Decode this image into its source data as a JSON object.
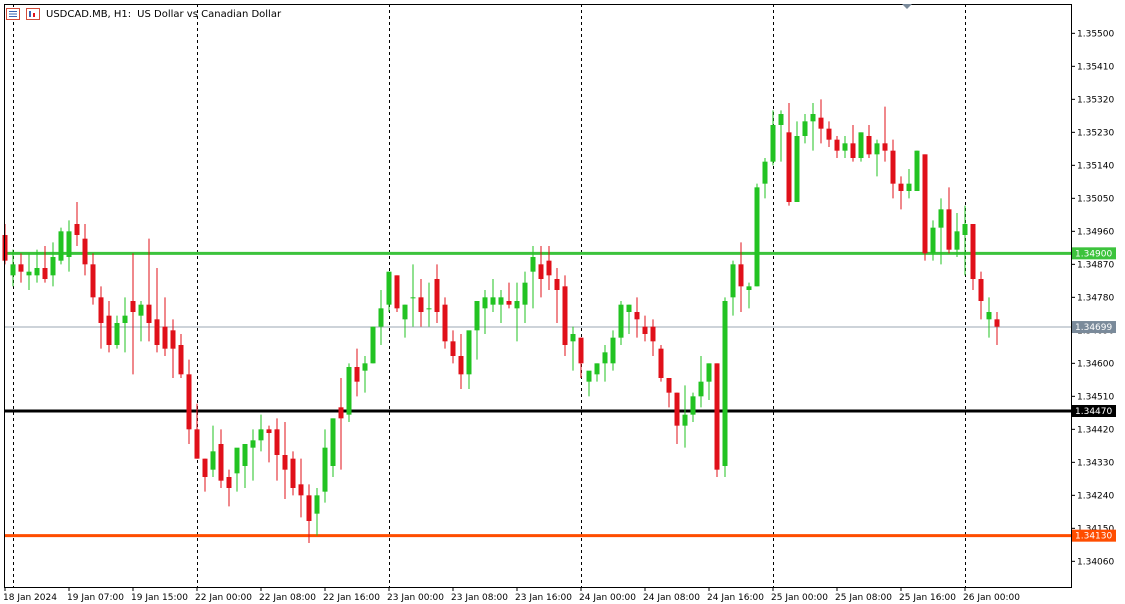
{
  "header": {
    "symbol": "USDCAD.MB, H1:",
    "description": "US Dollar vs Canadian Dollar"
  },
  "colors": {
    "bull": "#22c322",
    "bear": "#e0101a",
    "grid": "#000000",
    "level_green": "#3cc33c",
    "level_black": "#000000",
    "level_orange": "#ff4d00",
    "current_price_line": "#7a8a9a",
    "current_price_bg": "#7a8a9a"
  },
  "chart_data": {
    "type": "candlestick",
    "title": "USDCAD.MB, H1:  US Dollar vs Canadian Dollar",
    "timeframe": "H1",
    "ylim": [
      1.3399,
      1.3558
    ],
    "y_ticks": [
      "1.35500",
      "1.35410",
      "1.35320",
      "1.35230",
      "1.35140",
      "1.35050",
      "1.34960",
      "1.34870",
      "1.34780",
      "1.34690",
      "1.34600",
      "1.34510",
      "1.34420",
      "1.34330",
      "1.34240",
      "1.34150",
      "1.34060"
    ],
    "x_labels": [
      "18 Jan 2024",
      "19 Jan 07:00",
      "19 Jan 15:00",
      "22 Jan 00:00",
      "22 Jan 08:00",
      "22 Jan 16:00",
      "23 Jan 00:00",
      "23 Jan 08:00",
      "23 Jan 16:00",
      "24 Jan 00:00",
      "24 Jan 08:00",
      "24 Jan 16:00",
      "25 Jan 00:00",
      "25 Jan 08:00",
      "25 Jan 16:00",
      "26 Jan 00:00"
    ],
    "x_label_index": [
      0,
      8,
      16,
      24,
      32,
      40,
      48,
      56,
      64,
      72,
      80,
      88,
      96,
      104,
      112,
      120
    ],
    "day_separators_index": [
      1,
      24,
      48,
      72,
      96,
      120
    ],
    "levels": [
      {
        "price": 1.349,
        "label": "1.34900",
        "color_key": "level_green"
      },
      {
        "price": 1.3447,
        "label": "1.34470",
        "color_key": "level_black"
      },
      {
        "price": 1.3413,
        "label": "1.34130",
        "color_key": "level_orange"
      }
    ],
    "current_price": {
      "price": 1.34699,
      "label": "1.34699"
    },
    "candles": [
      {
        "o": 1.3495,
        "h": 1.3498,
        "l": 1.3487,
        "c": 1.3488
      },
      {
        "o": 1.3484,
        "h": 1.3491,
        "l": 1.3481,
        "c": 1.3487
      },
      {
        "o": 1.3487,
        "h": 1.349,
        "l": 1.3482,
        "c": 1.3485
      },
      {
        "o": 1.3484,
        "h": 1.349,
        "l": 1.348,
        "c": 1.3485
      },
      {
        "o": 1.3484,
        "h": 1.3491,
        "l": 1.3482,
        "c": 1.3486
      },
      {
        "o": 1.3486,
        "h": 1.3492,
        "l": 1.3482,
        "c": 1.3483
      },
      {
        "o": 1.3484,
        "h": 1.3493,
        "l": 1.3481,
        "c": 1.3489
      },
      {
        "o": 1.3488,
        "h": 1.3497,
        "l": 1.3487,
        "c": 1.3496
      },
      {
        "o": 1.3489,
        "h": 1.3499,
        "l": 1.3485,
        "c": 1.3496
      },
      {
        "o": 1.3498,
        "h": 1.3504,
        "l": 1.3492,
        "c": 1.3495
      },
      {
        "o": 1.3494,
        "h": 1.3498,
        "l": 1.3484,
        "c": 1.3487
      },
      {
        "o": 1.3487,
        "h": 1.349,
        "l": 1.3476,
        "c": 1.3478
      },
      {
        "o": 1.3478,
        "h": 1.3481,
        "l": 1.3464,
        "c": 1.3471
      },
      {
        "o": 1.3473,
        "h": 1.3477,
        "l": 1.3463,
        "c": 1.3465
      },
      {
        "o": 1.3465,
        "h": 1.3473,
        "l": 1.3464,
        "c": 1.3471
      },
      {
        "o": 1.3471,
        "h": 1.3478,
        "l": 1.3463,
        "c": 1.3473
      },
      {
        "o": 1.3477,
        "h": 1.349,
        "l": 1.3457,
        "c": 1.3474
      },
      {
        "o": 1.3473,
        "h": 1.3477,
        "l": 1.3466,
        "c": 1.3476
      },
      {
        "o": 1.3476,
        "h": 1.3494,
        "l": 1.3466,
        "c": 1.3471
      },
      {
        "o": 1.3472,
        "h": 1.3486,
        "l": 1.3463,
        "c": 1.3465
      },
      {
        "o": 1.347,
        "h": 1.3478,
        "l": 1.3462,
        "c": 1.3464
      },
      {
        "o": 1.3469,
        "h": 1.3472,
        "l": 1.3456,
        "c": 1.3464
      },
      {
        "o": 1.3465,
        "h": 1.3468,
        "l": 1.3456,
        "c": 1.3457
      },
      {
        "o": 1.3457,
        "h": 1.3461,
        "l": 1.3438,
        "c": 1.3442
      },
      {
        "o": 1.3442,
        "h": 1.3449,
        "l": 1.3434,
        "c": 1.3434
      },
      {
        "o": 1.3434,
        "h": 1.3434,
        "l": 1.3425,
        "c": 1.3429
      },
      {
        "o": 1.3431,
        "h": 1.3443,
        "l": 1.3429,
        "c": 1.3436
      },
      {
        "o": 1.3438,
        "h": 1.3442,
        "l": 1.3426,
        "c": 1.3428
      },
      {
        "o": 1.3429,
        "h": 1.3431,
        "l": 1.3421,
        "c": 1.3426
      },
      {
        "o": 1.343,
        "h": 1.3436,
        "l": 1.3425,
        "c": 1.3437
      },
      {
        "o": 1.3432,
        "h": 1.3437,
        "l": 1.3426,
        "c": 1.3438
      },
      {
        "o": 1.3437,
        "h": 1.3442,
        "l": 1.3428,
        "c": 1.3439
      },
      {
        "o": 1.3439,
        "h": 1.3446,
        "l": 1.3436,
        "c": 1.3442
      },
      {
        "o": 1.3442,
        "h": 1.3443,
        "l": 1.3433,
        "c": 1.3441
      },
      {
        "o": 1.3442,
        "h": 1.3445,
        "l": 1.3428,
        "c": 1.3435
      },
      {
        "o": 1.3435,
        "h": 1.3444,
        "l": 1.3423,
        "c": 1.3431
      },
      {
        "o": 1.3434,
        "h": 1.3436,
        "l": 1.3424,
        "c": 1.3426
      },
      {
        "o": 1.3427,
        "h": 1.3434,
        "l": 1.3418,
        "c": 1.3424
      },
      {
        "o": 1.3424,
        "h": 1.3427,
        "l": 1.3411,
        "c": 1.3417
      },
      {
        "o": 1.3419,
        "h": 1.3426,
        "l": 1.3413,
        "c": 1.3424
      },
      {
        "o": 1.3425,
        "h": 1.3442,
        "l": 1.3422,
        "c": 1.3437
      },
      {
        "o": 1.3432,
        "h": 1.3445,
        "l": 1.3429,
        "c": 1.3445
      },
      {
        "o": 1.3448,
        "h": 1.3456,
        "l": 1.3431,
        "c": 1.3445
      },
      {
        "o": 1.3446,
        "h": 1.346,
        "l": 1.3444,
        "c": 1.3459
      },
      {
        "o": 1.3459,
        "h": 1.3464,
        "l": 1.3451,
        "c": 1.3455
      },
      {
        "o": 1.3458,
        "h": 1.3462,
        "l": 1.3452,
        "c": 1.346
      },
      {
        "o": 1.346,
        "h": 1.347,
        "l": 1.346,
        "c": 1.347
      },
      {
        "o": 1.347,
        "h": 1.348,
        "l": 1.3465,
        "c": 1.3475
      },
      {
        "o": 1.3476,
        "h": 1.3485,
        "l": 1.3474,
        "c": 1.3485
      },
      {
        "o": 1.3484,
        "h": 1.3484,
        "l": 1.3474,
        "c": 1.3475
      },
      {
        "o": 1.3472,
        "h": 1.3476,
        "l": 1.3467,
        "c": 1.3476
      },
      {
        "o": 1.3478,
        "h": 1.3487,
        "l": 1.347,
        "c": 1.3478
      },
      {
        "o": 1.3478,
        "h": 1.3483,
        "l": 1.347,
        "c": 1.3474
      },
      {
        "o": 1.3475,
        "h": 1.3482,
        "l": 1.347,
        "c": 1.3475
      },
      {
        "o": 1.3483,
        "h": 1.3487,
        "l": 1.3471,
        "c": 1.3474
      },
      {
        "o": 1.3476,
        "h": 1.3478,
        "l": 1.3464,
        "c": 1.3466
      },
      {
        "o": 1.3466,
        "h": 1.3469,
        "l": 1.346,
        "c": 1.3462
      },
      {
        "o": 1.3462,
        "h": 1.3468,
        "l": 1.3453,
        "c": 1.3457
      },
      {
        "o": 1.3457,
        "h": 1.3468,
        "l": 1.3453,
        "c": 1.3469
      },
      {
        "o": 1.3469,
        "h": 1.3477,
        "l": 1.3461,
        "c": 1.3477
      },
      {
        "o": 1.3475,
        "h": 1.348,
        "l": 1.3468,
        "c": 1.3478
      },
      {
        "o": 1.3476,
        "h": 1.3483,
        "l": 1.3474,
        "c": 1.3478
      },
      {
        "o": 1.3476,
        "h": 1.348,
        "l": 1.3471,
        "c": 1.3478
      },
      {
        "o": 1.3477,
        "h": 1.3482,
        "l": 1.3475,
        "c": 1.3476
      },
      {
        "o": 1.3475,
        "h": 1.3482,
        "l": 1.3466,
        "c": 1.3477
      },
      {
        "o": 1.3476,
        "h": 1.3485,
        "l": 1.3471,
        "c": 1.3482
      },
      {
        "o": 1.3485,
        "h": 1.3492,
        "l": 1.3475,
        "c": 1.3489
      },
      {
        "o": 1.3487,
        "h": 1.3492,
        "l": 1.3478,
        "c": 1.3483
      },
      {
        "o": 1.3488,
        "h": 1.3492,
        "l": 1.348,
        "c": 1.3484
      },
      {
        "o": 1.3483,
        "h": 1.3486,
        "l": 1.3471,
        "c": 1.348
      },
      {
        "o": 1.3481,
        "h": 1.3484,
        "l": 1.3462,
        "c": 1.3465
      },
      {
        "o": 1.3466,
        "h": 1.347,
        "l": 1.3458,
        "c": 1.3468
      },
      {
        "o": 1.3467,
        "h": 1.3467,
        "l": 1.3456,
        "c": 1.346
      },
      {
        "o": 1.3455,
        "h": 1.3457,
        "l": 1.3451,
        "c": 1.3458
      },
      {
        "o": 1.3457,
        "h": 1.346,
        "l": 1.3455,
        "c": 1.346
      },
      {
        "o": 1.346,
        "h": 1.3465,
        "l": 1.3455,
        "c": 1.3463
      },
      {
        "o": 1.346,
        "h": 1.3469,
        "l": 1.3458,
        "c": 1.3467
      },
      {
        "o": 1.3467,
        "h": 1.3477,
        "l": 1.3465,
        "c": 1.3476
      },
      {
        "o": 1.3474,
        "h": 1.3476,
        "l": 1.3468,
        "c": 1.3476
      },
      {
        "o": 1.3474,
        "h": 1.3478,
        "l": 1.3467,
        "c": 1.3472
      },
      {
        "o": 1.347,
        "h": 1.3473,
        "l": 1.3466,
        "c": 1.3468
      },
      {
        "o": 1.347,
        "h": 1.3472,
        "l": 1.3462,
        "c": 1.3466
      },
      {
        "o": 1.3464,
        "h": 1.3465,
        "l": 1.3455,
        "c": 1.3456
      },
      {
        "o": 1.3456,
        "h": 1.3456,
        "l": 1.3448,
        "c": 1.3452
      },
      {
        "o": 1.3452,
        "h": 1.3452,
        "l": 1.3438,
        "c": 1.3443
      },
      {
        "o": 1.3443,
        "h": 1.3454,
        "l": 1.3437,
        "c": 1.3446
      },
      {
        "o": 1.3446,
        "h": 1.3452,
        "l": 1.3444,
        "c": 1.3451
      },
      {
        "o": 1.3451,
        "h": 1.3462,
        "l": 1.3448,
        "c": 1.3455
      },
      {
        "o": 1.3455,
        "h": 1.346,
        "l": 1.345,
        "c": 1.346
      },
      {
        "o": 1.346,
        "h": 1.346,
        "l": 1.3429,
        "c": 1.3431
      },
      {
        "o": 1.3432,
        "h": 1.3478,
        "l": 1.3429,
        "c": 1.3477
      },
      {
        "o": 1.3478,
        "h": 1.3488,
        "l": 1.3473,
        "c": 1.3487
      },
      {
        "o": 1.3487,
        "h": 1.3493,
        "l": 1.3474,
        "c": 1.3481
      },
      {
        "o": 1.348,
        "h": 1.3482,
        "l": 1.3475,
        "c": 1.3481
      },
      {
        "o": 1.3481,
        "h": 1.3509,
        "l": 1.3481,
        "c": 1.3508
      },
      {
        "o": 1.3509,
        "h": 1.3516,
        "l": 1.3505,
        "c": 1.3515
      },
      {
        "o": 1.3515,
        "h": 1.3529,
        "l": 1.3514,
        "c": 1.3525
      },
      {
        "o": 1.3525,
        "h": 1.3529,
        "l": 1.3515,
        "c": 1.3528
      },
      {
        "o": 1.3523,
        "h": 1.3531,
        "l": 1.3503,
        "c": 1.3504
      },
      {
        "o": 1.3504,
        "h": 1.3526,
        "l": 1.3504,
        "c": 1.3522
      },
      {
        "o": 1.3522,
        "h": 1.3528,
        "l": 1.352,
        "c": 1.3526
      },
      {
        "o": 1.3526,
        "h": 1.3531,
        "l": 1.3518,
        "c": 1.3528
      },
      {
        "o": 1.3527,
        "h": 1.3532,
        "l": 1.352,
        "c": 1.3524
      },
      {
        "o": 1.3524,
        "h": 1.3526,
        "l": 1.3519,
        "c": 1.3521
      },
      {
        "o": 1.3521,
        "h": 1.3522,
        "l": 1.3516,
        "c": 1.3518
      },
      {
        "o": 1.3518,
        "h": 1.3522,
        "l": 1.3516,
        "c": 1.352
      },
      {
        "o": 1.352,
        "h": 1.3525,
        "l": 1.3515,
        "c": 1.3516
      },
      {
        "o": 1.3516,
        "h": 1.3523,
        "l": 1.3515,
        "c": 1.3523
      },
      {
        "o": 1.3522,
        "h": 1.3525,
        "l": 1.3516,
        "c": 1.3517
      },
      {
        "o": 1.3517,
        "h": 1.3521,
        "l": 1.3511,
        "c": 1.352
      },
      {
        "o": 1.352,
        "h": 1.353,
        "l": 1.3515,
        "c": 1.3518
      },
      {
        "o": 1.3518,
        "h": 1.3521,
        "l": 1.3505,
        "c": 1.3509
      },
      {
        "o": 1.3509,
        "h": 1.3511,
        "l": 1.3502,
        "c": 1.3507
      },
      {
        "o": 1.3507,
        "h": 1.3513,
        "l": 1.3505,
        "c": 1.3509
      },
      {
        "o": 1.3507,
        "h": 1.3518,
        "l": 1.3507,
        "c": 1.3518
      },
      {
        "o": 1.3517,
        "h": 1.3517,
        "l": 1.3488,
        "c": 1.349
      },
      {
        "o": 1.349,
        "h": 1.3499,
        "l": 1.3488,
        "c": 1.3497
      },
      {
        "o": 1.3497,
        "h": 1.3505,
        "l": 1.3487,
        "c": 1.3502
      },
      {
        "o": 1.3502,
        "h": 1.3508,
        "l": 1.349,
        "c": 1.3491
      },
      {
        "o": 1.3491,
        "h": 1.3501,
        "l": 1.3489,
        "c": 1.3496
      },
      {
        "o": 1.3495,
        "h": 1.3503,
        "l": 1.3484,
        "c": 1.3498
      },
      {
        "o": 1.3498,
        "h": 1.3498,
        "l": 1.348,
        "c": 1.3483
      },
      {
        "o": 1.3483,
        "h": 1.3485,
        "l": 1.3472,
        "c": 1.3477
      },
      {
        "o": 1.3472,
        "h": 1.3478,
        "l": 1.3467,
        "c": 1.3474
      },
      {
        "o": 1.3472,
        "h": 1.3474,
        "l": 1.3465,
        "c": 1.347
      }
    ]
  }
}
